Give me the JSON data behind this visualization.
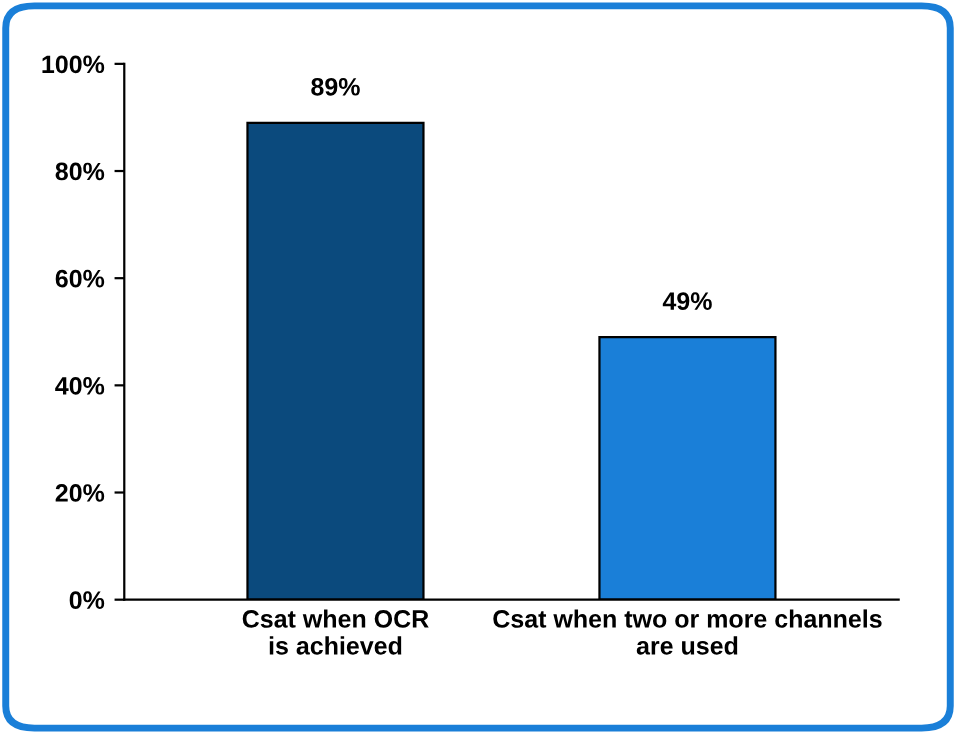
{
  "chart_data": {
    "type": "bar",
    "categories": [
      "Csat when OCR\nis achieved",
      "Csat when two or more channels\nare used"
    ],
    "values": [
      89,
      49
    ],
    "colors": [
      "#0b4a7d",
      "#1a7fd8"
    ],
    "value_labels": [
      "89%",
      "49%"
    ],
    "ylim": [
      0,
      100
    ],
    "yticks": [
      {
        "value": 0,
        "label": "0%"
      },
      {
        "value": 20,
        "label": "20%"
      },
      {
        "value": 40,
        "label": "40%"
      },
      {
        "value": 60,
        "label": "60%"
      },
      {
        "value": 80,
        "label": "80%"
      },
      {
        "value": 100,
        "label": "100%"
      }
    ],
    "grid": false,
    "legend": false
  }
}
